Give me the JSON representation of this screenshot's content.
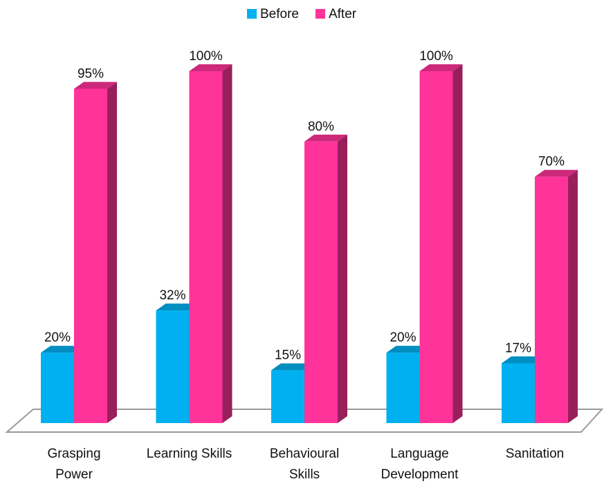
{
  "chart_data": {
    "type": "bar3d",
    "categories": [
      "Grasping Power",
      "Learning Skills",
      "Behavioural Skills",
      "Language Development",
      "Sanitation"
    ],
    "series": [
      {
        "name": "Before",
        "color": "#00b0f0",
        "values": [
          20,
          32,
          15,
          20,
          17
        ],
        "value_labels": [
          "20%",
          "32%",
          "15%",
          "20%",
          "17%"
        ]
      },
      {
        "name": "After",
        "color": "#ff3399",
        "values": [
          95,
          100,
          80,
          100,
          70
        ],
        "value_labels": [
          "95%",
          "100%",
          "80%",
          "100%",
          "70%"
        ]
      }
    ],
    "legend": "top"
  }
}
